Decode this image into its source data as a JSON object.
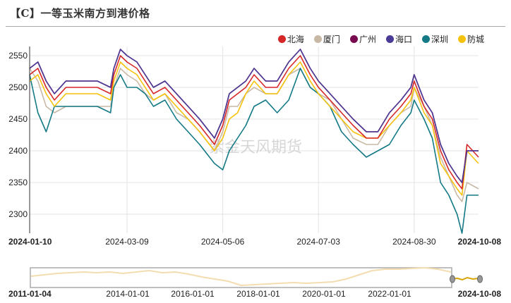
{
  "title": "【C】一等玉米南方到港价格",
  "watermark": "紫金天风期货",
  "legend": [
    {
      "name": "北海",
      "color": "#d62728"
    },
    {
      "name": "厦门",
      "color": "#c8b9a6"
    },
    {
      "name": "广州",
      "color": "#7a0a4f"
    },
    {
      "name": "海口",
      "color": "#4b3a96"
    },
    {
      "name": "深圳",
      "color": "#147a86"
    },
    {
      "name": "防城",
      "color": "#f5c20b"
    }
  ],
  "navigator": {
    "start_label": "2011-01-04",
    "end_label": "2024-10-08",
    "ticks": [
      "2014-01-01",
      "2016-01-01",
      "2018-01-01",
      "2020-01-01",
      "2022-01-01"
    ]
  },
  "chart_data": {
    "type": "line",
    "title": "【C】一等玉米南方到港价格",
    "xlabel": "",
    "ylabel": "",
    "ylim": [
      2270,
      2560
    ],
    "yticks": [
      2300,
      2350,
      2400,
      2450,
      2500,
      2550
    ],
    "xticks": [
      "2024-01-10",
      "2024-03-09",
      "2024-05-06",
      "2024-07-03",
      "2024-08-30",
      "2024-10-08"
    ],
    "grid": true,
    "legend_position": "top-right",
    "x": [
      "2024-01-10",
      "2024-01-15",
      "2024-01-20",
      "2024-01-25",
      "2024-02-01",
      "2024-02-20",
      "2024-02-28",
      "2024-03-01",
      "2024-03-05",
      "2024-03-09",
      "2024-03-15",
      "2024-03-20",
      "2024-03-25",
      "2024-04-01",
      "2024-04-08",
      "2024-04-15",
      "2024-04-22",
      "2024-05-01",
      "2024-05-06",
      "2024-05-10",
      "2024-05-15",
      "2024-05-20",
      "2024-05-25",
      "2024-06-01",
      "2024-06-08",
      "2024-06-15",
      "2024-06-22",
      "2024-06-28",
      "2024-07-03",
      "2024-07-10",
      "2024-07-17",
      "2024-07-24",
      "2024-08-01",
      "2024-08-08",
      "2024-08-15",
      "2024-08-22",
      "2024-08-28",
      "2024-08-30",
      "2024-09-05",
      "2024-09-10",
      "2024-09-15",
      "2024-09-20",
      "2024-09-25",
      "2024-09-28",
      "2024-10-01",
      "2024-10-08"
    ],
    "series": [
      {
        "name": "北海",
        "values": [
          2520,
          2530,
          2500,
          2480,
          2500,
          2500,
          2490,
          2520,
          2550,
          2540,
          2530,
          2510,
          2490,
          2500,
          2480,
          2460,
          2440,
          2410,
          2440,
          2480,
          2490,
          2500,
          2520,
          2500,
          2500,
          2530,
          2550,
          2520,
          2500,
          2480,
          2460,
          2440,
          2420,
          2420,
          2450,
          2470,
          2490,
          2510,
          2470,
          2450,
          2400,
          2370,
          2350,
          2340,
          2410,
          2390
        ]
      },
      {
        "name": "厦门",
        "values": [
          2530,
          2510,
          2470,
          2460,
          2470,
          2470,
          2470,
          2500,
          2530,
          2520,
          2510,
          2490,
          2480,
          2490,
          2460,
          2450,
          2430,
          2400,
          2430,
          2470,
          2470,
          2490,
          2500,
          2490,
          2490,
          2520,
          2530,
          2500,
          2490,
          2480,
          2450,
          2420,
          2410,
          2410,
          2440,
          2460,
          2470,
          2500,
          2470,
          2440,
          2390,
          2360,
          2330,
          2320,
          2350,
          2340
        ]
      },
      {
        "name": "广州",
        "values": [
          2530,
          2540,
          2510,
          2490,
          2510,
          2510,
          2500,
          2530,
          2560,
          2550,
          2540,
          2520,
          2500,
          2510,
          2490,
          2470,
          2450,
          2420,
          2450,
          2490,
          2500,
          2510,
          2530,
          2510,
          2510,
          2540,
          2560,
          2530,
          2510,
          2490,
          2470,
          2450,
          2430,
          2430,
          2460,
          2480,
          2500,
          2520,
          2480,
          2460,
          2410,
          2380,
          2360,
          2350,
          2400,
          2400
        ]
      },
      {
        "name": "海口",
        "values": [
          2530,
          2540,
          2510,
          2490,
          2510,
          2510,
          2500,
          2530,
          2560,
          2550,
          2540,
          2520,
          2500,
          2510,
          2490,
          2470,
          2450,
          2420,
          2450,
          2490,
          2500,
          2510,
          2530,
          2510,
          2510,
          2540,
          2560,
          2530,
          2510,
          2490,
          2470,
          2450,
          2430,
          2430,
          2460,
          2480,
          2500,
          2520,
          2480,
          2460,
          2410,
          2380,
          2360,
          2350,
          2400,
          2400
        ]
      },
      {
        "name": "深圳",
        "values": [
          2520,
          2460,
          2430,
          2470,
          2470,
          2470,
          2460,
          2500,
          2520,
          2500,
          2500,
          2490,
          2470,
          2480,
          2450,
          2430,
          2410,
          2380,
          2370,
          2400,
          2420,
          2440,
          2470,
          2480,
          2460,
          2480,
          2530,
          2500,
          2490,
          2470,
          2430,
          2410,
          2390,
          2400,
          2410,
          2440,
          2460,
          2480,
          2450,
          2420,
          2350,
          2330,
          2300,
          2270,
          2330,
          2330
        ]
      },
      {
        "name": "防城",
        "values": [
          2510,
          2520,
          2490,
          2470,
          2490,
          2490,
          2480,
          2510,
          2540,
          2530,
          2520,
          2500,
          2480,
          2490,
          2470,
          2450,
          2430,
          2400,
          2420,
          2450,
          2460,
          2490,
          2510,
          2490,
          2490,
          2520,
          2540,
          2510,
          2490,
          2470,
          2450,
          2430,
          2420,
          2420,
          2440,
          2460,
          2480,
          2500,
          2460,
          2440,
          2380,
          2360,
          2340,
          2330,
          2400,
          2380
        ]
      }
    ]
  }
}
